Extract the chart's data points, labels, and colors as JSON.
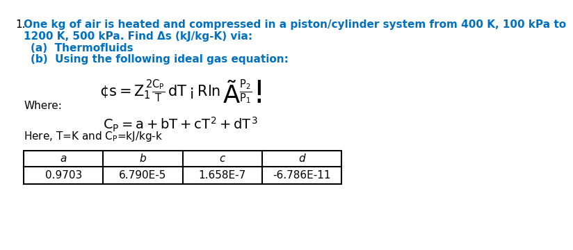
{
  "title_line1": "One kg of air is heated and compressed in a piston/cylinder system from 400 K, 100 kPa to",
  "title_line2": "1200 K, 500 kPa. Find Δs (kJ/kg-K) via:",
  "item_number": "1.",
  "sub_a": "(a)  Thermofluids",
  "sub_b": "(b)  Using the following ideal gas equation:",
  "equation_As": "$\\Delta s = \\int_1^2 \\frac{C_P}{T}\\,dT - R\\ln\\left(\\frac{P_2}{P_1}\\right)$",
  "where_label": "Where:",
  "equation_Cp": "$C_P = a + bT + cT^2 + dT^3$",
  "note": "Here, T=K and C",
  "note2": "=kJ/kg-k",
  "table_headers": [
    "a",
    "b",
    "c",
    "d"
  ],
  "table_values": [
    "0.9703",
    "6.790E-5",
    "1.658E-7",
    "-6.786E-11"
  ],
  "text_color_black": "#000000",
  "text_color_blue": "#0070C0",
  "bg_color": "#ffffff",
  "font_size_main": 11,
  "font_size_eq": 14,
  "font_size_table": 11
}
